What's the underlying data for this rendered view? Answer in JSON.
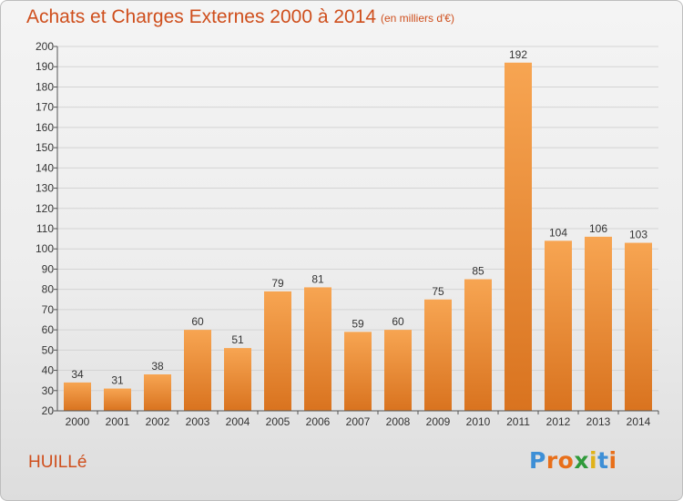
{
  "header": {
    "title": "Achats et Charges Externes 2000 à 2014",
    "subtitle": "(en milliers d'€)"
  },
  "footer": {
    "commune": "HUILLé",
    "logo_text": "Proxiti",
    "logo_colors": [
      "#3d8fd6",
      "#e86f1a",
      "#e86f1a",
      "#2f9a3a",
      "#e0b21a",
      "#3d8fd6",
      "#e86f1a"
    ]
  },
  "colors": {
    "title": "#cf4f1d",
    "bar_light": "#f7a552",
    "bar_dark": "#d9731f",
    "grid": "#d4d4d4"
  },
  "chart_data": {
    "type": "bar",
    "categories": [
      "2000",
      "2001",
      "2002",
      "2003",
      "2004",
      "2005",
      "2006",
      "2007",
      "2008",
      "2009",
      "2010",
      "2011",
      "2012",
      "2013",
      "2014"
    ],
    "values": [
      34,
      31,
      38,
      60,
      51,
      79,
      81,
      59,
      60,
      75,
      85,
      192,
      104,
      106,
      103
    ],
    "ylim": [
      20,
      200
    ],
    "ytick_step": 10,
    "grid": true,
    "data_labels": true
  }
}
